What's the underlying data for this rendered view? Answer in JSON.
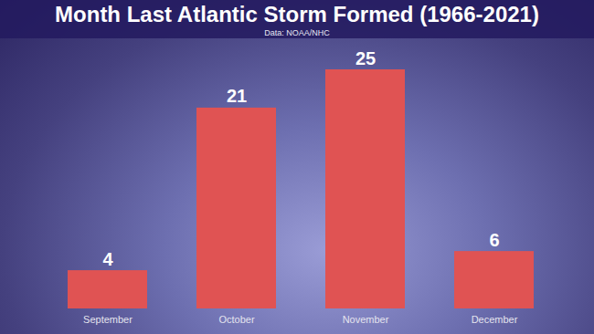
{
  "chart_data": {
    "type": "bar",
    "title": "Month Last Atlantic Storm Formed (1966-2021)",
    "subtitle": "Data: NOAA/NHC",
    "categories": [
      "September",
      "October",
      "November",
      "December"
    ],
    "values": [
      4,
      21,
      25,
      6
    ],
    "color": "#e05353",
    "ylim": [
      0,
      25
    ],
    "grid": false,
    "data_labels": true,
    "tick_labels": "x"
  }
}
